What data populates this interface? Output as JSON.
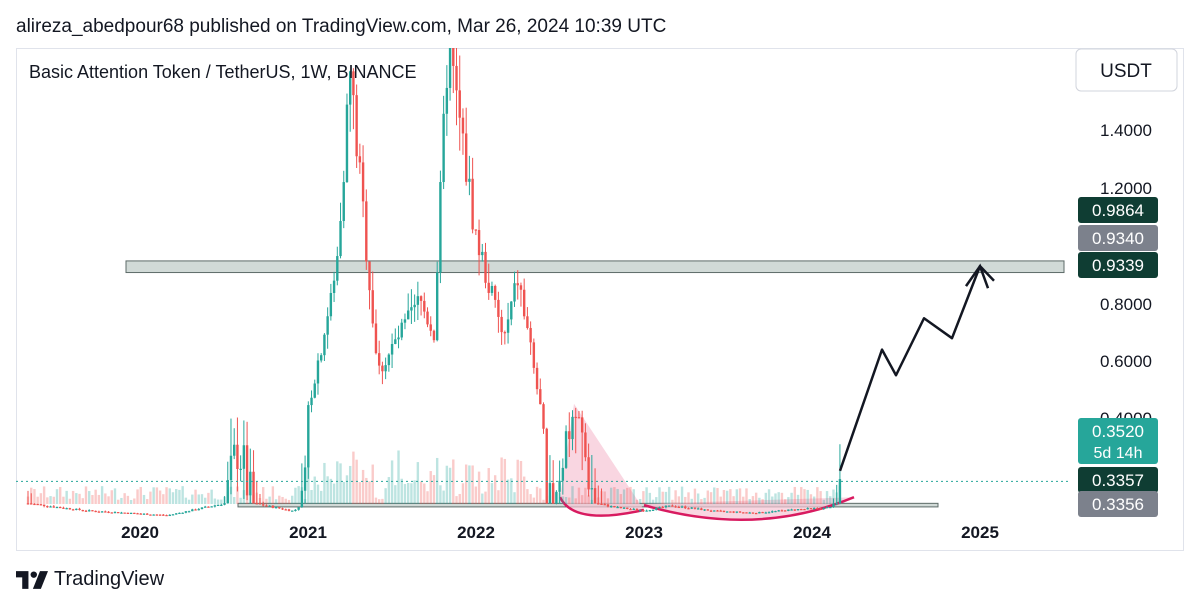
{
  "header": {
    "publish_line": "alireza_abedpour68 published on TradingView.com, Mar 26, 2024 10:39 UTC"
  },
  "footer": {
    "brand": "TradingView"
  },
  "colors": {
    "up": "#26a69a",
    "down": "#ef5350",
    "zone_fill": "#c9d3d0",
    "cup_fill": "#f7c4d4",
    "cup_line": "#d81b60",
    "arrow": "#131722",
    "current_price_bg": "#26a69a",
    "dark_label_bg": "#0f3d33",
    "gray_label_bg": "#7c818c"
  },
  "chart_data": {
    "type": "candlestick",
    "title": "Basic Attention Token / TetherUS, 1W, BINANCE",
    "currency": "USDT",
    "x_tick_labels": [
      "2020",
      "2021",
      "2022",
      "2023",
      "2024",
      "2025"
    ],
    "y_tick_labels": [
      "1.4000",
      "1.2000",
      "0.8000",
      "0.6000",
      "0.4000"
    ],
    "price_labels": [
      {
        "value": 0.9864,
        "text": "0.9864",
        "style": "dark"
      },
      {
        "value": 0.934,
        "text": "0.9340",
        "style": "gray"
      },
      {
        "value": 0.9339,
        "text": "0.9339",
        "style": "dark"
      },
      {
        "value": 0.352,
        "text": "0.3520",
        "style": "current",
        "countdown": "5d 14h"
      },
      {
        "value": 0.3357,
        "text": "0.3357",
        "style": "dark"
      },
      {
        "value": 0.3356,
        "text": "0.3356",
        "style": "gray"
      }
    ],
    "zones": [
      {
        "from": "2019-12",
        "to": "2025-07",
        "low": 0.908,
        "high": 0.948
      },
      {
        "from": "2020-08",
        "to": "2024-10",
        "low": 0.27,
        "high": 0.33
      }
    ],
    "key_points": [
      {
        "date": "2019-05",
        "price": 0.33
      },
      {
        "date": "2019-09",
        "price": 0.21
      },
      {
        "date": "2020-03",
        "price": 0.13
      },
      {
        "date": "2020-08",
        "price": 0.38
      },
      {
        "date": "2020-12",
        "price": 0.2
      },
      {
        "date": "2021-03",
        "price": 0.9
      },
      {
        "date": "2021-04",
        "price": 1.6
      },
      {
        "date": "2021-06",
        "price": 0.56
      },
      {
        "date": "2021-09",
        "price": 0.81
      },
      {
        "date": "2021-10",
        "price": 0.7
      },
      {
        "date": "2021-11",
        "price": 1.7
      },
      {
        "date": "2022-01",
        "price": 1.03
      },
      {
        "date": "2022-03",
        "price": 0.67
      },
      {
        "date": "2022-04",
        "price": 0.89
      },
      {
        "date": "2022-06",
        "price": 0.32
      },
      {
        "date": "2022-08",
        "price": 0.41
      },
      {
        "date": "2022-11",
        "price": 0.26
      },
      {
        "date": "2023-01",
        "price": 0.21
      },
      {
        "date": "2023-03",
        "price": 0.29
      },
      {
        "date": "2023-06",
        "price": 0.2
      },
      {
        "date": "2023-09",
        "price": 0.17
      },
      {
        "date": "2023-12",
        "price": 0.23
      },
      {
        "date": "2024-02",
        "price": 0.25
      },
      {
        "date": "2024-03",
        "price": 0.352
      }
    ],
    "projection": [
      {
        "date": "2024-03",
        "price": 0.36
      },
      {
        "date": "2024-06",
        "price": 0.64
      },
      {
        "date": "2024-07",
        "price": 0.55
      },
      {
        "date": "2024-09",
        "price": 0.75
      },
      {
        "date": "2024-11",
        "price": 0.68
      },
      {
        "date": "2025-01",
        "price": 0.93
      },
      {
        "date": "2025-02",
        "price": 0.88
      }
    ]
  }
}
